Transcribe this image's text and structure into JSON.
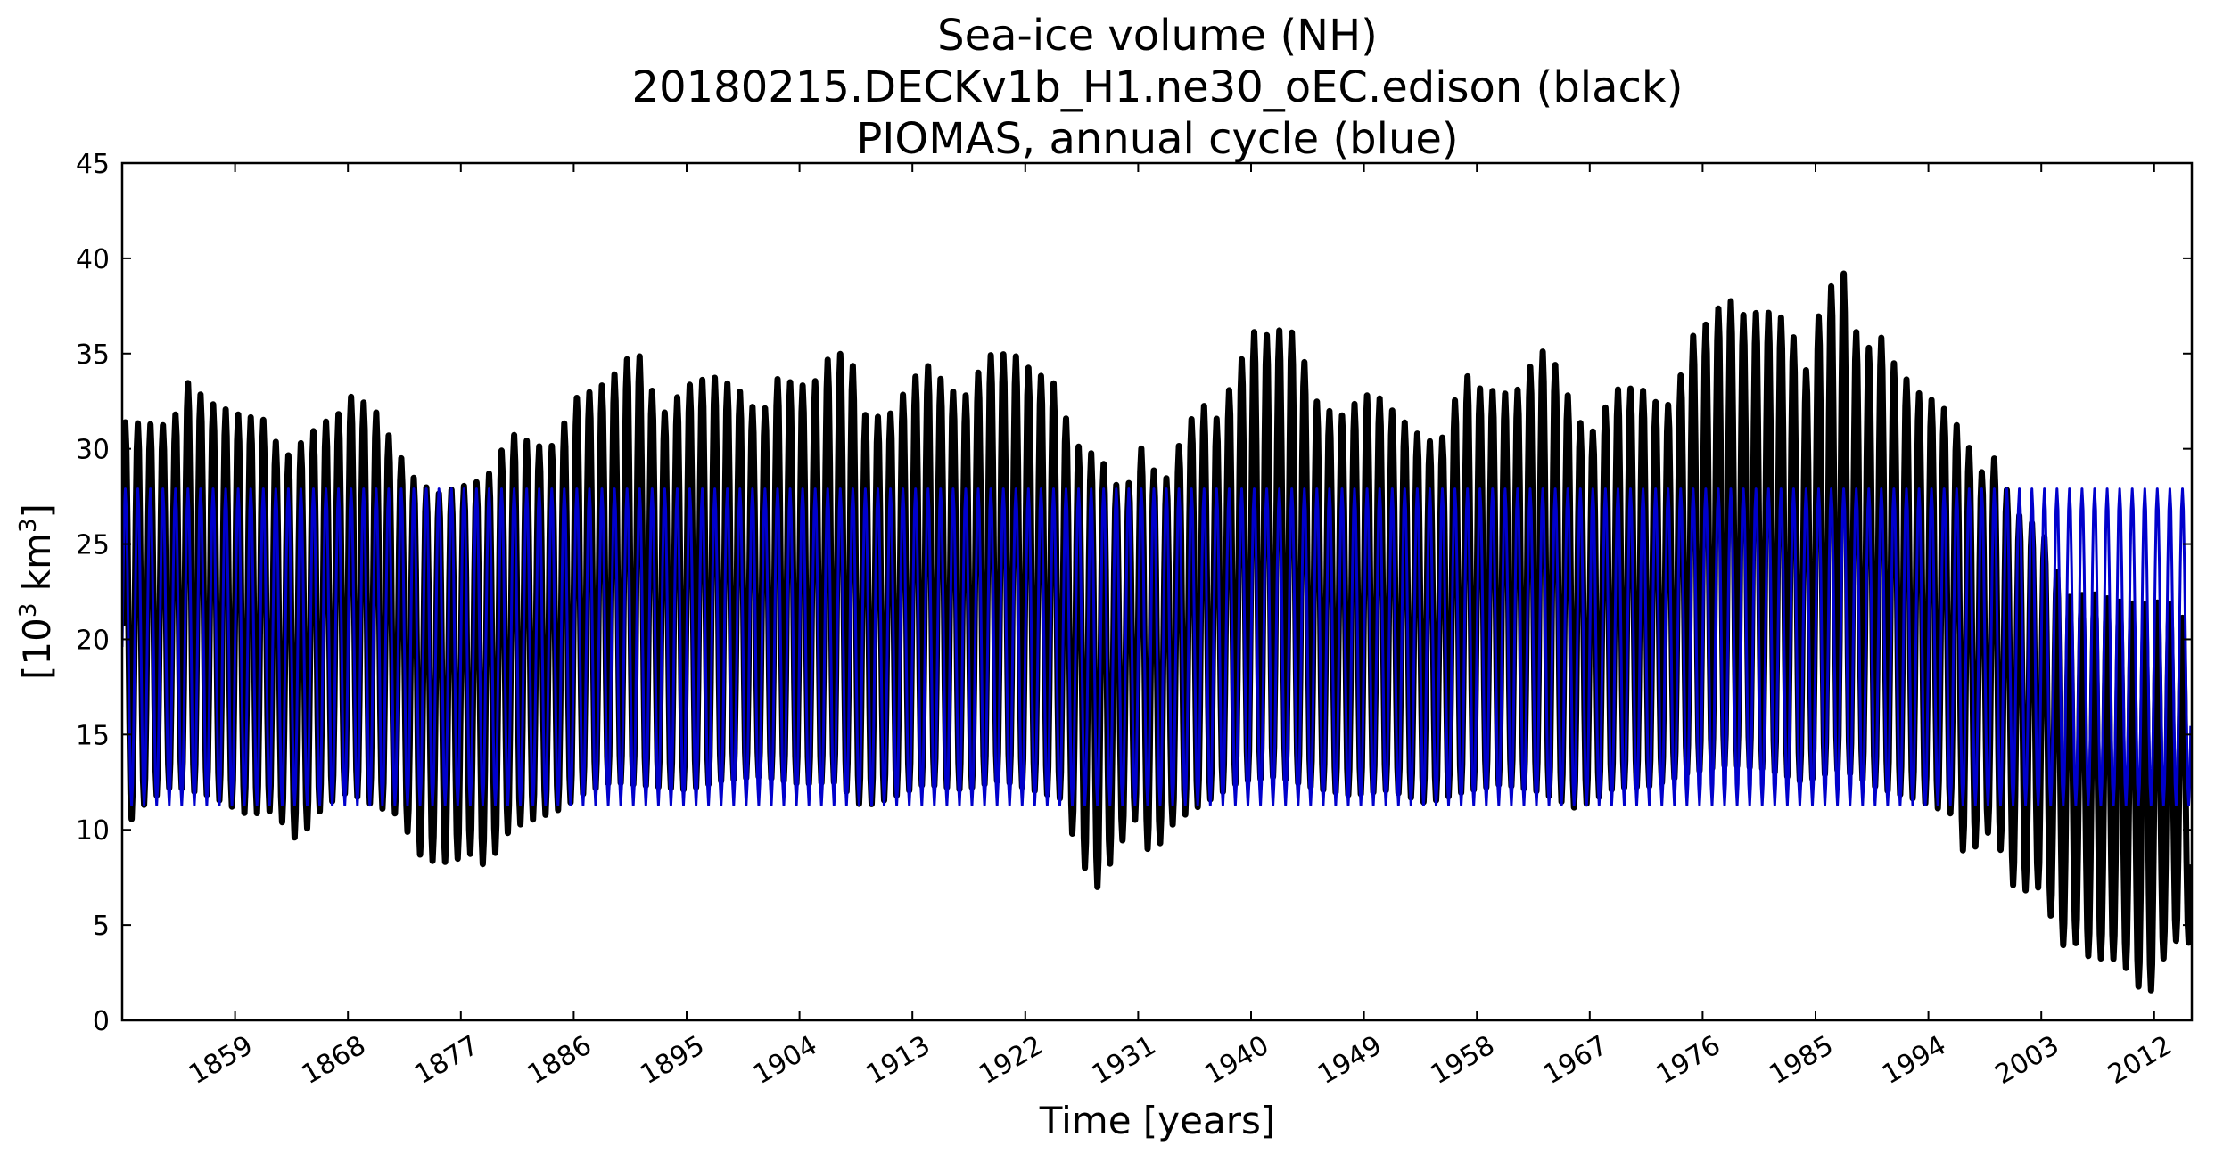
{
  "chart_data": {
    "type": "line",
    "title_lines": [
      "Sea-ice volume (NH)",
      "20180215.DECKv1b_H1.ne30_oEC.edison (black)",
      "PIOMAS, annual cycle (blue)"
    ],
    "xlabel": "Time [years]",
    "ylabel_main": "[10",
    "ylabel_exp1": "3",
    "ylabel_mid": " km",
    "ylabel_exp2": "3",
    "ylabel_end": "]",
    "xlim": [
      1850,
      2015
    ],
    "ylim": [
      0,
      45
    ],
    "yticks": [
      "0",
      "5",
      "10",
      "15",
      "20",
      "25",
      "30",
      "35",
      "40",
      "45"
    ],
    "xticks": [
      "1859",
      "1868",
      "1877",
      "1886",
      "1895",
      "1904",
      "1913",
      "1922",
      "1931",
      "1940",
      "1949",
      "1958",
      "1967",
      "1976",
      "1985",
      "1994",
      "2003",
      "2012"
    ],
    "grid": false,
    "series": [
      {
        "color": "#000000",
        "x_start": 1850,
        "x_end": 2015,
        "annual_max": [
          {
            "x": 1850,
            "y": 31.4
          },
          {
            "x": 1854,
            "y": 31.2
          },
          {
            "x": 1855,
            "y": 33.6
          },
          {
            "x": 1857,
            "y": 32.4
          },
          {
            "x": 1860,
            "y": 31.6
          },
          {
            "x": 1861,
            "y": 31.8
          },
          {
            "x": 1863,
            "y": 29.5
          },
          {
            "x": 1866,
            "y": 31.4
          },
          {
            "x": 1867,
            "y": 31.5
          },
          {
            "x": 1868,
            "y": 32.8
          },
          {
            "x": 1870,
            "y": 32.2
          },
          {
            "x": 1872,
            "y": 29.8
          },
          {
            "x": 1873,
            "y": 28.6
          },
          {
            "x": 1875,
            "y": 27.6
          },
          {
            "x": 1877,
            "y": 28.0
          },
          {
            "x": 1879,
            "y": 28.4
          },
          {
            "x": 1881,
            "y": 30.8
          },
          {
            "x": 1884,
            "y": 29.9
          },
          {
            "x": 1885,
            "y": 30.9
          },
          {
            "x": 1886,
            "y": 32.6
          },
          {
            "x": 1888,
            "y": 33.2
          },
          {
            "x": 1889,
            "y": 33.7
          },
          {
            "x": 1891,
            "y": 35.3
          },
          {
            "x": 1893,
            "y": 31.7
          },
          {
            "x": 1895,
            "y": 33.3
          },
          {
            "x": 1897,
            "y": 33.8
          },
          {
            "x": 1899,
            "y": 33.2
          },
          {
            "x": 1901,
            "y": 31.6
          },
          {
            "x": 1902,
            "y": 33.7
          },
          {
            "x": 1905,
            "y": 33.2
          },
          {
            "x": 1906,
            "y": 34.6
          },
          {
            "x": 1908,
            "y": 35.2
          },
          {
            "x": 1909,
            "y": 31.8
          },
          {
            "x": 1911,
            "y": 31.6
          },
          {
            "x": 1912,
            "y": 32.6
          },
          {
            "x": 1914,
            "y": 34.5
          },
          {
            "x": 1917,
            "y": 32.5
          },
          {
            "x": 1919,
            "y": 34.9
          },
          {
            "x": 1921,
            "y": 35.0
          },
          {
            "x": 1923,
            "y": 33.8
          },
          {
            "x": 1924,
            "y": 33.9
          },
          {
            "x": 1926,
            "y": 30.2
          },
          {
            "x": 1928,
            "y": 29.5
          },
          {
            "x": 1929,
            "y": 28.3
          },
          {
            "x": 1930,
            "y": 27.5
          },
          {
            "x": 1931,
            "y": 30.3
          },
          {
            "x": 1933,
            "y": 28.0
          },
          {
            "x": 1934,
            "y": 29.8
          },
          {
            "x": 1936,
            "y": 32.6
          },
          {
            "x": 1937,
            "y": 31.2
          },
          {
            "x": 1939,
            "y": 34.2
          },
          {
            "x": 1940,
            "y": 36.2
          },
          {
            "x": 1941,
            "y": 35.9
          },
          {
            "x": 1943,
            "y": 36.4
          },
          {
            "x": 1944,
            "y": 35.2
          },
          {
            "x": 1945,
            "y": 32.6
          },
          {
            "x": 1947,
            "y": 31.6
          },
          {
            "x": 1949,
            "y": 32.8
          },
          {
            "x": 1950,
            "y": 32.8
          },
          {
            "x": 1953,
            "y": 30.9
          },
          {
            "x": 1955,
            "y": 30.1
          },
          {
            "x": 1957,
            "y": 34.0
          },
          {
            "x": 1958,
            "y": 33.2
          },
          {
            "x": 1961,
            "y": 32.8
          },
          {
            "x": 1963,
            "y": 35.2
          },
          {
            "x": 1964,
            "y": 34.8
          },
          {
            "x": 1966,
            "y": 31.6
          },
          {
            "x": 1967,
            "y": 30.6
          },
          {
            "x": 1969,
            "y": 33.1
          },
          {
            "x": 1971,
            "y": 33.2
          },
          {
            "x": 1973,
            "y": 32.0
          },
          {
            "x": 1974,
            "y": 33.2
          },
          {
            "x": 1975,
            "y": 35.8
          },
          {
            "x": 1976,
            "y": 36.3
          },
          {
            "x": 1978,
            "y": 38.0
          },
          {
            "x": 1979,
            "y": 37.0
          },
          {
            "x": 1981,
            "y": 37.2
          },
          {
            "x": 1983,
            "y": 36.7
          },
          {
            "x": 1984,
            "y": 33.3
          },
          {
            "x": 1985,
            "y": 36.6
          },
          {
            "x": 1986,
            "y": 38.0
          },
          {
            "x": 1987,
            "y": 40.1
          },
          {
            "x": 1988,
            "y": 36.5
          },
          {
            "x": 1989,
            "y": 35.0
          },
          {
            "x": 1990,
            "y": 36.2
          },
          {
            "x": 1991,
            "y": 34.7
          },
          {
            "x": 1993,
            "y": 33.0
          },
          {
            "x": 1995,
            "y": 32.3
          },
          {
            "x": 1997,
            "y": 30.6
          },
          {
            "x": 1998,
            "y": 28.4
          },
          {
            "x": 1999,
            "y": 29.9
          },
          {
            "x": 2001,
            "y": 26.6
          },
          {
            "x": 2003,
            "y": 25.8
          },
          {
            "x": 2005,
            "y": 22.2
          },
          {
            "x": 2007,
            "y": 22.4
          },
          {
            "x": 2009,
            "y": 22.0
          },
          {
            "x": 2011,
            "y": 21.8
          },
          {
            "x": 2013,
            "y": 22.0
          },
          {
            "x": 2015,
            "y": 20.6
          }
        ],
        "annual_min": [
          {
            "x": 1850,
            "y": 10.0
          },
          {
            "x": 1852,
            "y": 11.5
          },
          {
            "x": 1854,
            "y": 12.3
          },
          {
            "x": 1857,
            "y": 11.8
          },
          {
            "x": 1860,
            "y": 10.8
          },
          {
            "x": 1862,
            "y": 11.0
          },
          {
            "x": 1864,
            "y": 9.4
          },
          {
            "x": 1866,
            "y": 11.2
          },
          {
            "x": 1868,
            "y": 12.0
          },
          {
            "x": 1870,
            "y": 11.3
          },
          {
            "x": 1872,
            "y": 10.8
          },
          {
            "x": 1874,
            "y": 8.4
          },
          {
            "x": 1876,
            "y": 8.3
          },
          {
            "x": 1878,
            "y": 8.8
          },
          {
            "x": 1879,
            "y": 8.0
          },
          {
            "x": 1881,
            "y": 10.1
          },
          {
            "x": 1883,
            "y": 10.6
          },
          {
            "x": 1885,
            "y": 11.1
          },
          {
            "x": 1887,
            "y": 12.0
          },
          {
            "x": 1889,
            "y": 12.5
          },
          {
            "x": 1892,
            "y": 12.3
          },
          {
            "x": 1895,
            "y": 12.1
          },
          {
            "x": 1898,
            "y": 12.6
          },
          {
            "x": 1901,
            "y": 12.8
          },
          {
            "x": 1904,
            "y": 12.4
          },
          {
            "x": 1907,
            "y": 12.5
          },
          {
            "x": 1909,
            "y": 11.2
          },
          {
            "x": 1911,
            "y": 11.6
          },
          {
            "x": 1914,
            "y": 12.4
          },
          {
            "x": 1917,
            "y": 12.1
          },
          {
            "x": 1920,
            "y": 12.6
          },
          {
            "x": 1923,
            "y": 12.0
          },
          {
            "x": 1925,
            "y": 11.6
          },
          {
            "x": 1926,
            "y": 9.2
          },
          {
            "x": 1927,
            "y": 7.6
          },
          {
            "x": 1928,
            "y": 6.8
          },
          {
            "x": 1929,
            "y": 8.7
          },
          {
            "x": 1930,
            "y": 9.7
          },
          {
            "x": 1931,
            "y": 10.8
          },
          {
            "x": 1932,
            "y": 8.4
          },
          {
            "x": 1933,
            "y": 9.6
          },
          {
            "x": 1934,
            "y": 10.5
          },
          {
            "x": 1936,
            "y": 11.3
          },
          {
            "x": 1939,
            "y": 12.5
          },
          {
            "x": 1942,
            "y": 12.8
          },
          {
            "x": 1945,
            "y": 12.2
          },
          {
            "x": 1948,
            "y": 11.8
          },
          {
            "x": 1951,
            "y": 12.1
          },
          {
            "x": 1954,
            "y": 11.4
          },
          {
            "x": 1957,
            "y": 12.0
          },
          {
            "x": 1960,
            "y": 12.4
          },
          {
            "x": 1963,
            "y": 12.0
          },
          {
            "x": 1966,
            "y": 11.1
          },
          {
            "x": 1969,
            "y": 12.2
          },
          {
            "x": 1972,
            "y": 12.3
          },
          {
            "x": 1975,
            "y": 13.0
          },
          {
            "x": 1978,
            "y": 13.4
          },
          {
            "x": 1981,
            "y": 13.2
          },
          {
            "x": 1984,
            "y": 12.5
          },
          {
            "x": 1987,
            "y": 13.2
          },
          {
            "x": 1990,
            "y": 12.2
          },
          {
            "x": 1993,
            "y": 11.6
          },
          {
            "x": 1996,
            "y": 10.8
          },
          {
            "x": 1997,
            "y": 8.3
          },
          {
            "x": 1998,
            "y": 9.4
          },
          {
            "x": 1999,
            "y": 10.0
          },
          {
            "x": 2000,
            "y": 8.6
          },
          {
            "x": 2001,
            "y": 6.6
          },
          {
            "x": 2002,
            "y": 6.9
          },
          {
            "x": 2003,
            "y": 7.0
          },
          {
            "x": 2004,
            "y": 5.0
          },
          {
            "x": 2005,
            "y": 3.6
          },
          {
            "x": 2006,
            "y": 4.2
          },
          {
            "x": 2007,
            "y": 3.1
          },
          {
            "x": 2008,
            "y": 3.3
          },
          {
            "x": 2009,
            "y": 3.2
          },
          {
            "x": 2010,
            "y": 2.6
          },
          {
            "x": 2011,
            "y": 1.5
          },
          {
            "x": 2012,
            "y": 1.6
          },
          {
            "x": 2013,
            "y": 3.8
          },
          {
            "x": 2014,
            "y": 4.3
          },
          {
            "x": 2015,
            "y": 4.0
          }
        ]
      },
      {
        "color": "#0000cc",
        "x_start": 1850,
        "x_end": 2015,
        "annual_max": [
          {
            "x": 1850,
            "y": 27.9
          },
          {
            "x": 2015,
            "y": 27.9
          }
        ],
        "annual_min": [
          {
            "x": 1850,
            "y": 11.3
          },
          {
            "x": 2015,
            "y": 11.3
          }
        ]
      }
    ]
  }
}
